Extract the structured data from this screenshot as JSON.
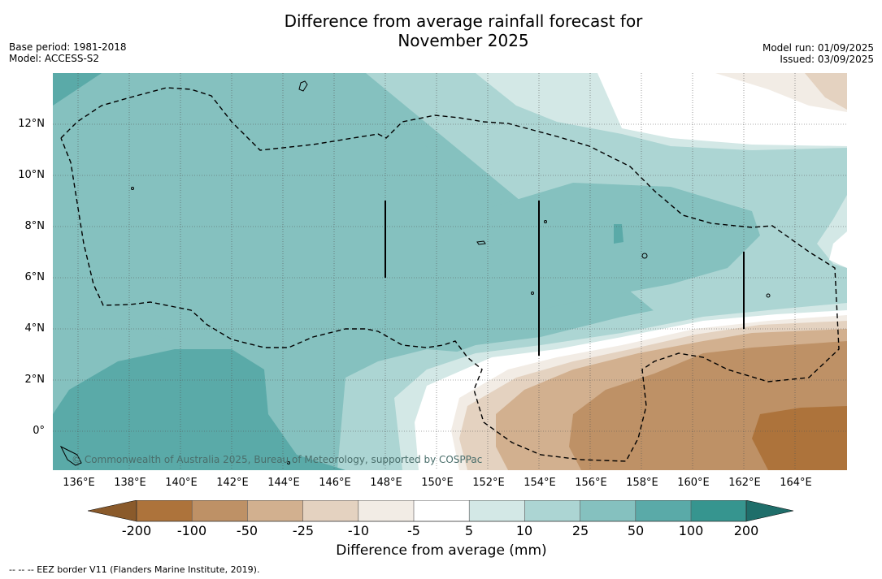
{
  "title_line1": "Difference from average rainfall forecast for",
  "title_line2": "November 2025",
  "base_period": "Base period: 1981-2018",
  "model": "Model: ACCESS-S2",
  "model_run": "Model run: 01/09/2025",
  "issued": "Issued: 03/09/2025",
  "lat_labels": [
    "12°N",
    "10°N",
    "8°N",
    "6°N",
    "4°N",
    "2°N",
    "0°"
  ],
  "lon_labels": [
    "136°E",
    "138°E",
    "140°E",
    "142°E",
    "144°E",
    "146°E",
    "148°E",
    "150°E",
    "152°E",
    "154°E",
    "156°E",
    "158°E",
    "160°E",
    "162°E",
    "164°E"
  ],
  "copyright": "© Commonwealth of Australia 2025, Bureau of Meteorology, supported by COSPPac",
  "colorbar": {
    "ticks": [
      "-200",
      "-100",
      "-50",
      "-25",
      "-10",
      "-5",
      "5",
      "10",
      "25",
      "50",
      "100",
      "200"
    ],
    "colors": {
      "below_min": "#8a5a2b",
      "lt_neg200_neg100": "#ad733b",
      "neg100_neg50": "#be9166",
      "neg50_neg25": "#d2b08f",
      "neg25_neg10": "#e4d2c0",
      "neg10_neg5": "#f2ece5",
      "neg5_5": "#ffffff",
      "5_10": "#d3e8e6",
      "10_25": "#acd5d3",
      "25_50": "#85c1bf",
      "50_100": "#5aaaa8",
      "100_200": "#36958f",
      "above_max": "#1f6e6a"
    },
    "title": "Difference from average (mm)"
  },
  "footnote": "--  --  -- EEZ border V11 (Flanders Marine Institute, 2019)."
}
